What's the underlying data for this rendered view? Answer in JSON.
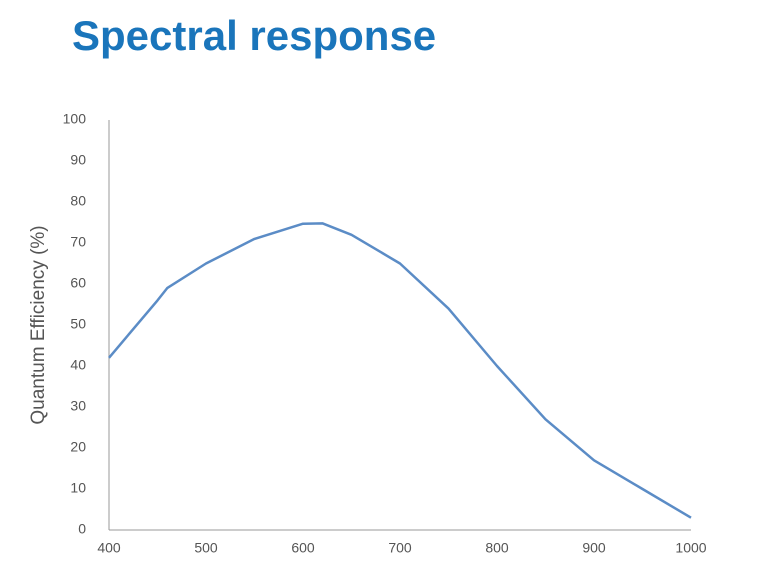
{
  "chart_data": {
    "type": "line",
    "title": "Spectral response",
    "y_label": "Quantum Efficiency (%)",
    "x": [
      400,
      450,
      460,
      500,
      550,
      600,
      620,
      650,
      700,
      750,
      800,
      850,
      900,
      950,
      1000
    ],
    "values": [
      42,
      56,
      59,
      65,
      71,
      74.7,
      74.8,
      72,
      65,
      54,
      40,
      27,
      17,
      10,
      3
    ],
    "color": "#5b8cc6",
    "xlim": [
      400,
      1000
    ],
    "xticks": [
      400,
      500,
      600,
      700,
      800,
      900,
      1000
    ],
    "ylim": [
      0,
      100
    ],
    "yticks": [
      0,
      10,
      20,
      30,
      40,
      50,
      60,
      70,
      80,
      90,
      100
    ]
  }
}
